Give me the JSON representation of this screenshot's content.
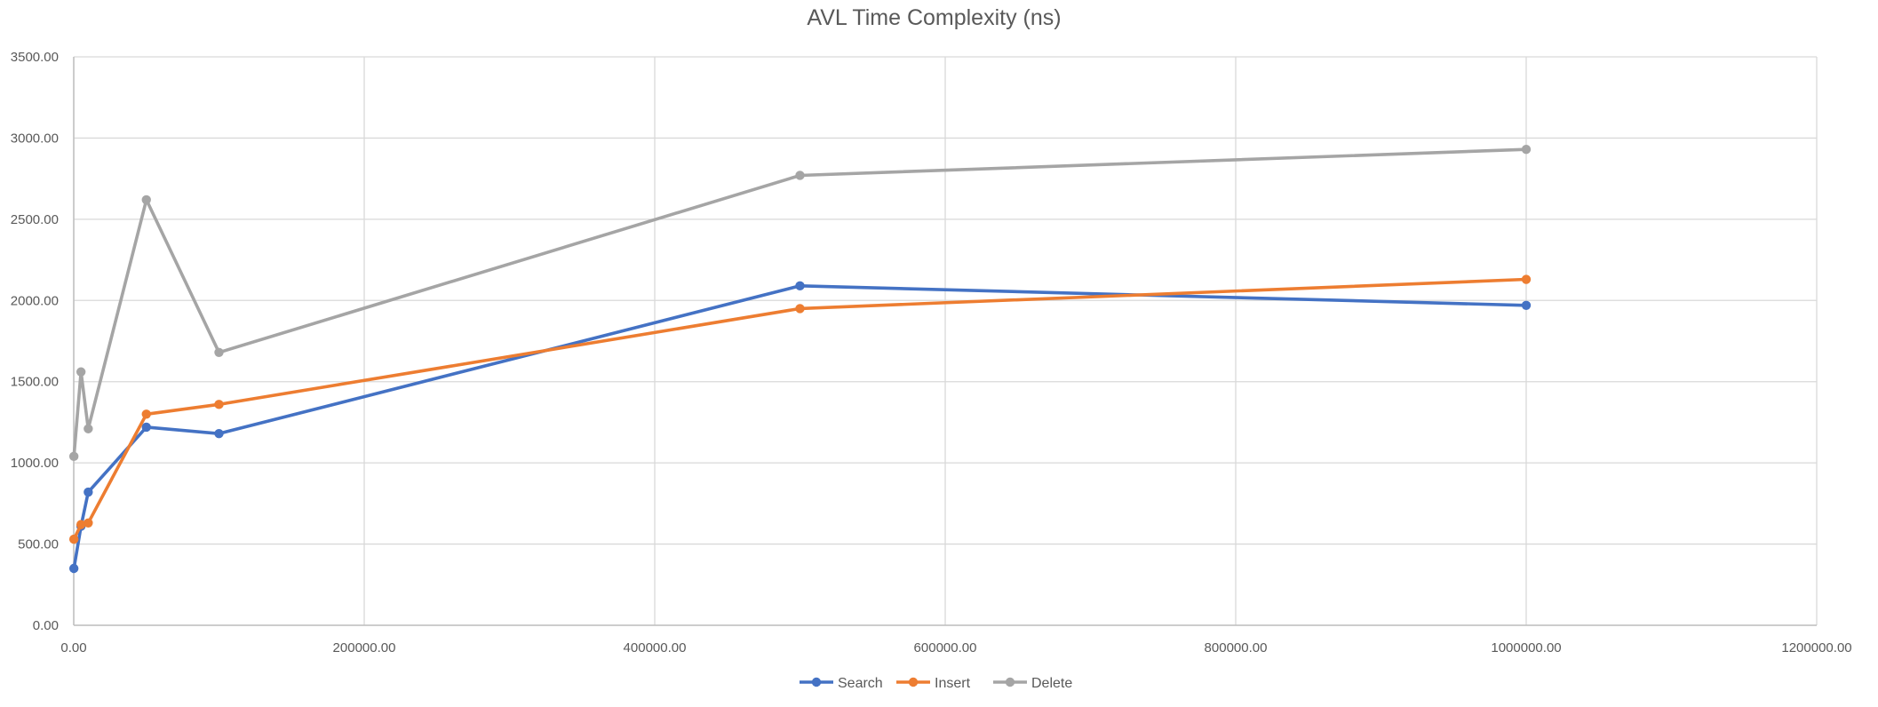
{
  "chart_data": {
    "type": "line",
    "title": "AVL Time Complexity (ns)",
    "xlabel": "",
    "ylabel": "",
    "xlim": [
      0,
      1200000
    ],
    "ylim": [
      0,
      3500
    ],
    "x_ticks": [
      "0.00",
      "200000.00",
      "400000.00",
      "600000.00",
      "800000.00",
      "1000000.00",
      "1200000.00"
    ],
    "y_ticks": [
      "0.00",
      "500.00",
      "1000.00",
      "1500.00",
      "2000.00",
      "2500.00",
      "3000.00",
      "3500.00"
    ],
    "grid": true,
    "legend_position": "bottom",
    "x": [
      100,
      5000,
      10000,
      50000,
      100000,
      500000,
      1000000
    ],
    "series": [
      {
        "name": "Search",
        "color": "#4472C4",
        "values": [
          350,
          610,
          820,
          1220,
          1180,
          2090,
          1970
        ]
      },
      {
        "name": "Insert",
        "color": "#ED7D31",
        "values": [
          530,
          620,
          630,
          1300,
          1360,
          1950,
          2130
        ]
      },
      {
        "name": "Delete",
        "color": "#A5A5A5",
        "values": [
          1040,
          1560,
          1210,
          2620,
          1680,
          2770,
          2930
        ]
      }
    ]
  }
}
